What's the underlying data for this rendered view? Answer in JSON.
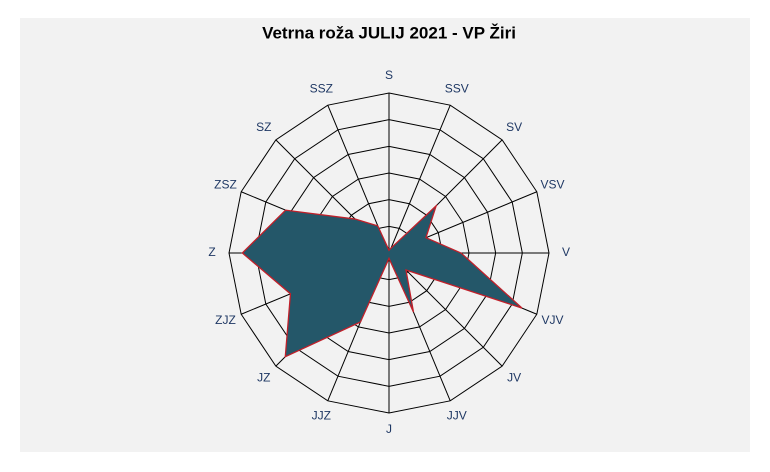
{
  "chart_data": {
    "type": "radar",
    "title": "Vetrna roža JULIJ 2021 - VP Žiri",
    "categories": [
      "S",
      "SSV",
      "SV",
      "VSV",
      "V",
      "VJV",
      "JV",
      "JJV",
      "J",
      "JJZ",
      "JZ",
      "ZJZ",
      "Z",
      "ZSZ",
      "SZ",
      "SSZ"
    ],
    "series": [
      {
        "color": "#245769",
        "values": [
          0.1,
          0.2,
          2.5,
          1.5,
          2.7,
          5.4,
          0.9,
          2.4,
          0.2,
          2.8,
          5.5,
          4.0,
          5.5,
          4.2,
          1.8,
          1.1
        ]
      }
    ],
    "edge_color": "#c0202a",
    "ylim": [
      0,
      6
    ],
    "yticks": [
      1,
      2,
      3,
      4,
      5,
      6
    ],
    "grid": true
  }
}
